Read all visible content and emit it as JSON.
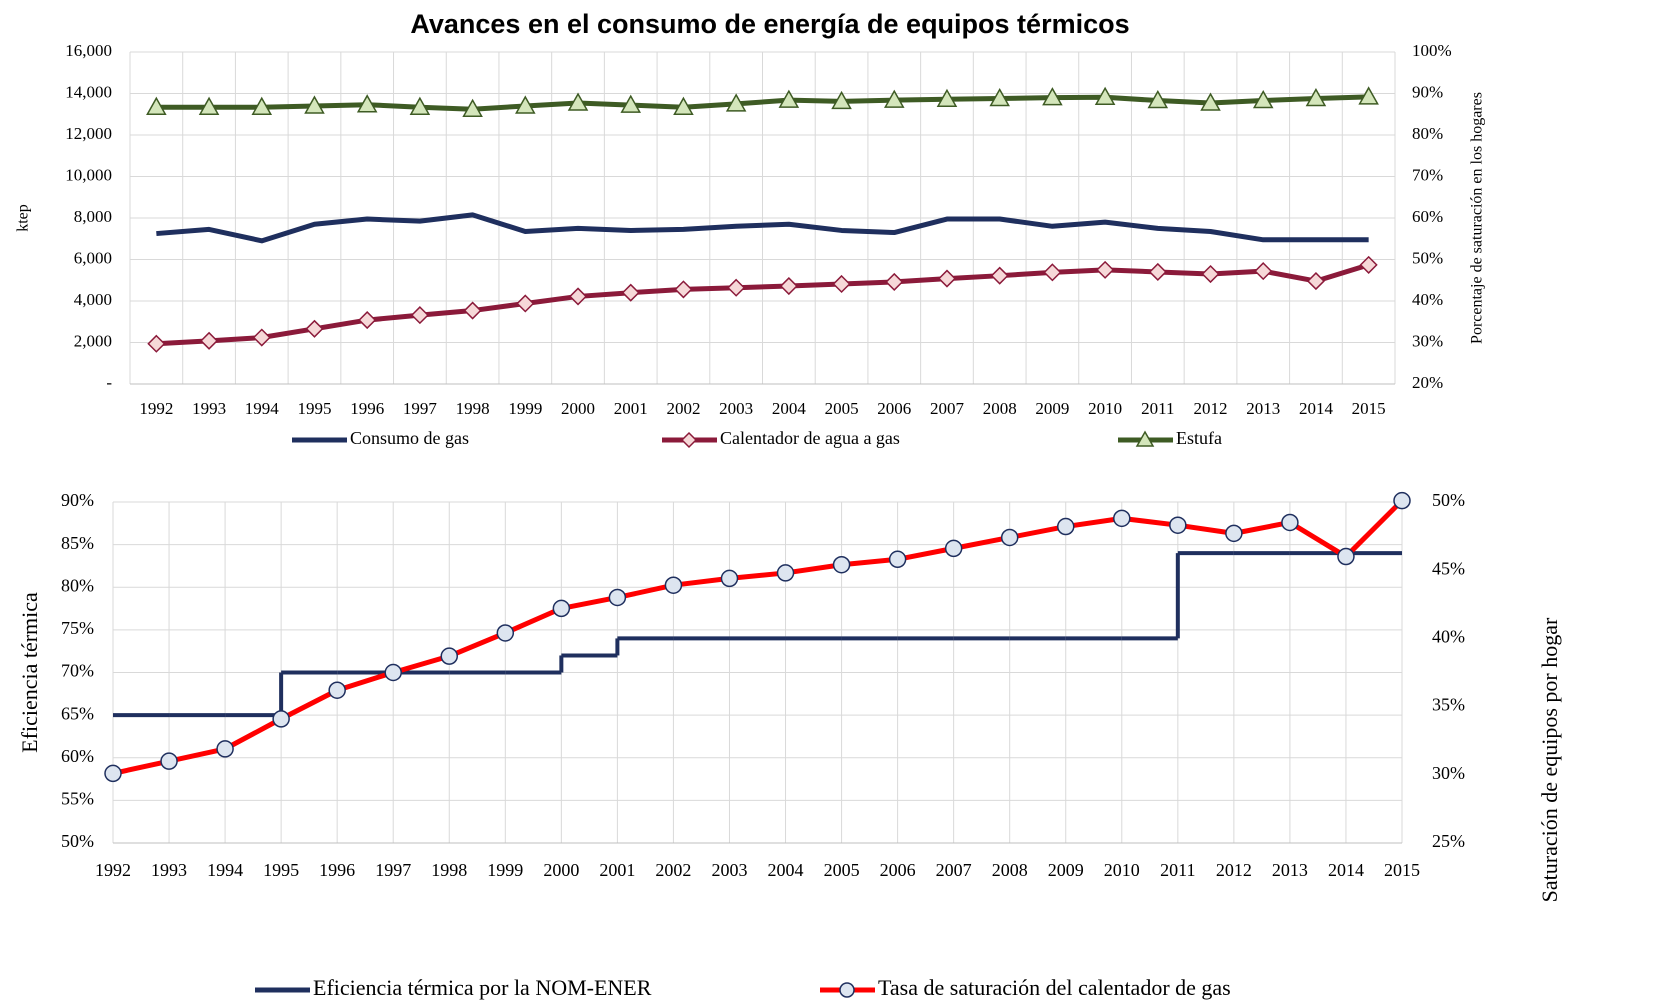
{
  "chart_data": [
    {
      "type": "line",
      "title": "Avances en el consumo de energía de equipos térmicos",
      "ylabel": "ktep",
      "y2label": "Porcentaje de saturación en los hogares",
      "categories": [
        "1992",
        "1993",
        "1994",
        "1995",
        "1996",
        "1997",
        "1998",
        "1999",
        "2000",
        "2001",
        "2002",
        "2003",
        "2004",
        "2005",
        "2006",
        "2007",
        "2008",
        "2009",
        "2010",
        "2011",
        "2012",
        "2013",
        "2014",
        "2015"
      ],
      "ylim": [
        0,
        16000
      ],
      "yticks": [
        {
          "value": 0,
          "label": "-"
        },
        {
          "value": 2000,
          "label": "2,000"
        },
        {
          "value": 4000,
          "label": "4,000"
        },
        {
          "value": 6000,
          "label": "6,000"
        },
        {
          "value": 8000,
          "label": "8,000"
        },
        {
          "value": 10000,
          "label": "10,000"
        },
        {
          "value": 12000,
          "label": "12,000"
        },
        {
          "value": 14000,
          "label": "14,000"
        },
        {
          "value": 16000,
          "label": "16,000"
        }
      ],
      "y2lim": [
        20,
        100
      ],
      "y2ticks": [
        {
          "value": 20,
          "label": "20%"
        },
        {
          "value": 30,
          "label": "30%"
        },
        {
          "value": 40,
          "label": "40%"
        },
        {
          "value": 50,
          "label": "50%"
        },
        {
          "value": 60,
          "label": "60%"
        },
        {
          "value": 70,
          "label": "70%"
        },
        {
          "value": 80,
          "label": "80%"
        },
        {
          "value": 90,
          "label": "90%"
        },
        {
          "value": 100,
          "label": "100%"
        }
      ],
      "grid": true,
      "legend": "bottom",
      "series": [
        {
          "name": "Consumo de gas",
          "color": "#1f2f5e",
          "marker": "none",
          "values": [
            7250,
            7450,
            6900,
            7700,
            7950,
            7850,
            8150,
            7350,
            7500,
            7400,
            7450,
            7600,
            7700,
            7400,
            7300,
            7950,
            7950,
            7600,
            7800,
            7500,
            7350,
            6950,
            6950,
            6950
          ]
        },
        {
          "name": "Calentador de agua a gas",
          "color": "#8b1a3a",
          "marker": "diamond",
          "marker_fill": "#f6d8d8",
          "axis": "y2",
          "values": [
            29.7,
            30.4,
            31.2,
            33.3,
            35.4,
            36.6,
            37.7,
            39.4,
            41.1,
            42.0,
            42.8,
            43.2,
            43.6,
            44.1,
            44.6,
            45.4,
            46.1,
            46.9,
            47.5,
            47.0,
            46.5,
            47.2,
            44.8,
            48.7
          ]
        },
        {
          "name": "Estufa",
          "color": "#3e5b24",
          "marker": "triangle",
          "marker_fill": "#d4e6bb",
          "axis": "y2",
          "values": [
            86.7,
            86.7,
            86.7,
            87.0,
            87.3,
            86.7,
            86.2,
            87.0,
            87.7,
            87.2,
            86.7,
            87.5,
            88.4,
            88.1,
            88.4,
            88.6,
            88.8,
            89.0,
            89.1,
            88.3,
            87.7,
            88.3,
            88.8,
            89.2
          ]
        }
      ]
    },
    {
      "type": "line",
      "ylabel": "Eficiencia térmica",
      "y2label": "Saturación de equipos por hogar",
      "categories": [
        "1992",
        "1993",
        "1994",
        "1995",
        "1996",
        "1997",
        "1998",
        "1999",
        "2000",
        "2001",
        "2002",
        "2003",
        "2004",
        "2005",
        "2006",
        "2007",
        "2008",
        "2009",
        "2010",
        "2011",
        "2012",
        "2013",
        "2014",
        "2015"
      ],
      "ylim": [
        50,
        90
      ],
      "yticks": [
        {
          "value": 50,
          "label": "50%"
        },
        {
          "value": 55,
          "label": "55%"
        },
        {
          "value": 60,
          "label": "60%"
        },
        {
          "value": 65,
          "label": "65%"
        },
        {
          "value": 70,
          "label": "70%"
        },
        {
          "value": 75,
          "label": "75%"
        },
        {
          "value": 80,
          "label": "80%"
        },
        {
          "value": 85,
          "label": "85%"
        },
        {
          "value": 90,
          "label": "90%"
        }
      ],
      "y2lim": [
        25,
        50
      ],
      "y2ticks": [
        {
          "value": 25,
          "label": "25%"
        },
        {
          "value": 30,
          "label": "30%"
        },
        {
          "value": 35,
          "label": "35%"
        },
        {
          "value": 40,
          "label": "40%"
        },
        {
          "value": 45,
          "label": "45%"
        },
        {
          "value": 50,
          "label": "50%"
        }
      ],
      "grid": true,
      "legend": "bottom",
      "series": [
        {
          "name": "Eficiencia térmica por la NOM-ENER",
          "color": "#1f2f5e",
          "marker": "none",
          "step": true,
          "values": [
            65,
            65,
            65,
            70,
            70,
            70,
            70,
            70,
            72,
            74,
            74,
            74,
            74,
            74,
            74,
            74,
            74,
            74,
            74,
            84,
            84,
            84,
            84,
            84
          ]
        },
        {
          "name": "Tasa de saturación del calentador de gas",
          "color": "#ff0000",
          "marker": "circle",
          "marker_fill": "#dde5f0",
          "marker_stroke": "#1f2f5e",
          "axis": "y2",
          "values": [
            30.1,
            31.0,
            31.9,
            34.1,
            36.2,
            37.5,
            38.7,
            40.4,
            42.2,
            43.0,
            43.9,
            44.4,
            44.8,
            45.4,
            45.8,
            46.6,
            47.4,
            48.2,
            48.8,
            48.3,
            47.7,
            48.5,
            46.0,
            50.1
          ]
        }
      ]
    }
  ]
}
